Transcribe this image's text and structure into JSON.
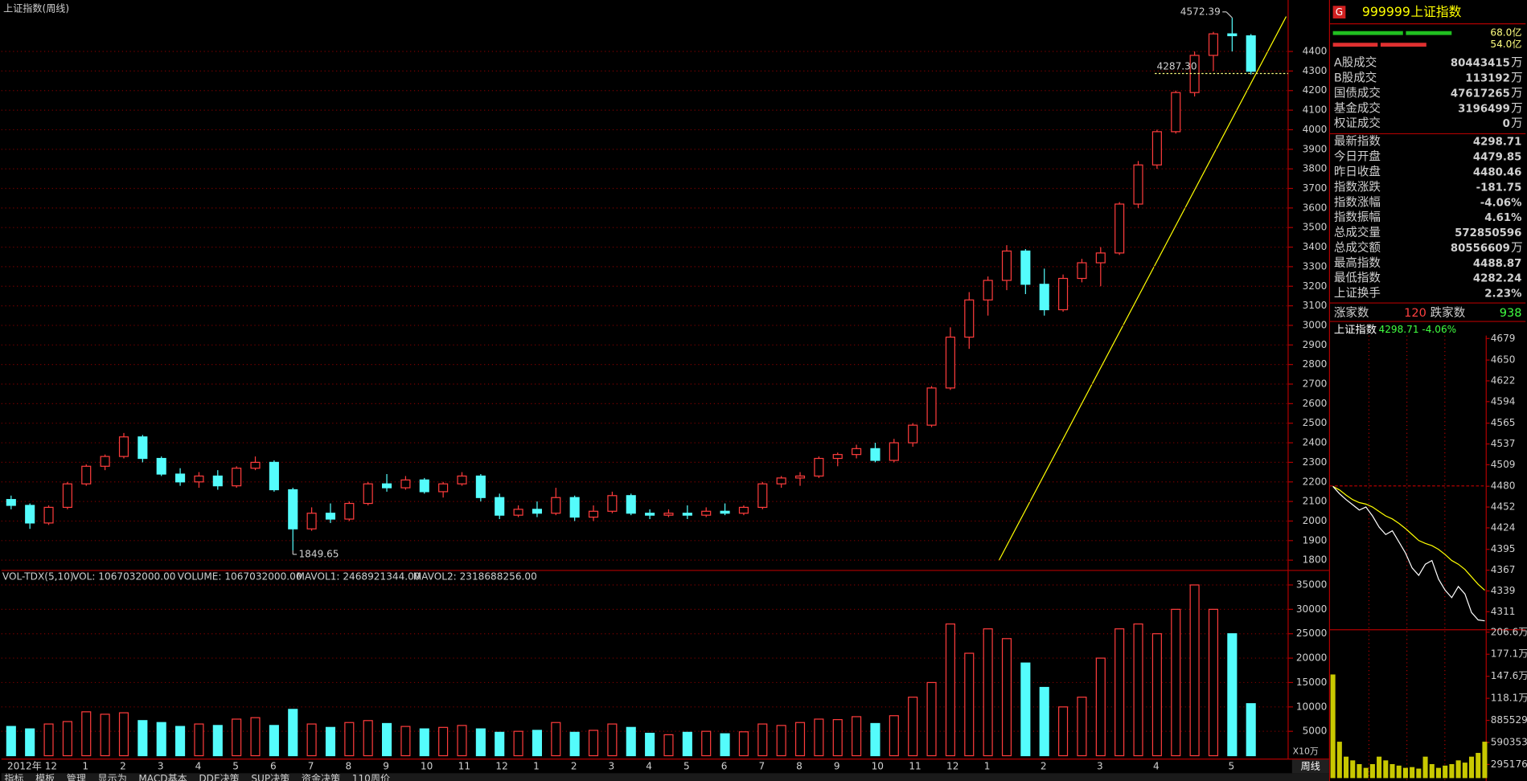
{
  "chart_data": [
    {
      "type": "candlestick",
      "title": "上证指数(周线)",
      "categories": [
        "2012年",
        null,
        "12",
        null,
        "1",
        null,
        "2",
        null,
        "3",
        null,
        "4",
        null,
        "5",
        null,
        "6",
        null,
        "7",
        null,
        "8",
        null,
        "9",
        null,
        "10",
        null,
        "11",
        null,
        "12",
        null,
        "1",
        null,
        "2",
        null,
        "3",
        null,
        "4",
        null,
        "5",
        null,
        "6",
        null,
        "7",
        null,
        "8",
        null,
        "9",
        null,
        "10",
        null,
        "11",
        null,
        "12",
        null,
        "1",
        null,
        null,
        "2",
        null,
        null,
        "3",
        null,
        null,
        "4",
        null,
        null,
        null,
        "5",
        null
      ],
      "ohlc": [
        [
          2110,
          2130,
          2060,
          2080
        ],
        [
          2080,
          2090,
          1960,
          1990
        ],
        [
          1990,
          2080,
          1980,
          2070
        ],
        [
          2070,
          2200,
          2060,
          2190
        ],
        [
          2190,
          2290,
          2180,
          2280
        ],
        [
          2280,
          2340,
          2260,
          2330
        ],
        [
          2330,
          2450,
          2320,
          2430
        ],
        [
          2430,
          2440,
          2300,
          2320
        ],
        [
          2320,
          2330,
          2230,
          2240
        ],
        [
          2240,
          2270,
          2180,
          2200
        ],
        [
          2200,
          2250,
          2170,
          2230
        ],
        [
          2230,
          2260,
          2160,
          2180
        ],
        [
          2180,
          2280,
          2170,
          2270
        ],
        [
          2270,
          2330,
          2260,
          2300
        ],
        [
          2300,
          2310,
          2150,
          2160
        ],
        [
          2160,
          2170,
          1849.65,
          1960
        ],
        [
          1960,
          2070,
          1950,
          2040
        ],
        [
          2040,
          2090,
          1990,
          2010
        ],
        [
          2010,
          2100,
          2000,
          2090
        ],
        [
          2090,
          2200,
          2080,
          2190
        ],
        [
          2190,
          2240,
          2150,
          2170
        ],
        [
          2170,
          2230,
          2160,
          2210
        ],
        [
          2210,
          2220,
          2140,
          2150
        ],
        [
          2150,
          2200,
          2120,
          2190
        ],
        [
          2190,
          2250,
          2180,
          2230
        ],
        [
          2230,
          2240,
          2100,
          2120
        ],
        [
          2120,
          2140,
          2010,
          2030
        ],
        [
          2030,
          2080,
          2020,
          2060
        ],
        [
          2060,
          2100,
          2020,
          2040
        ],
        [
          2040,
          2170,
          2030,
          2120
        ],
        [
          2120,
          2130,
          2000,
          2020
        ],
        [
          2020,
          2080,
          2000,
          2050
        ],
        [
          2050,
          2150,
          2040,
          2130
        ],
        [
          2130,
          2140,
          2030,
          2040
        ],
        [
          2040,
          2060,
          2010,
          2030
        ],
        [
          2030,
          2060,
          2020,
          2040
        ],
        [
          2040,
          2080,
          2010,
          2030
        ],
        [
          2030,
          2070,
          2020,
          2050
        ],
        [
          2050,
          2090,
          2030,
          2040
        ],
        [
          2040,
          2080,
          2030,
          2070
        ],
        [
          2070,
          2200,
          2060,
          2190
        ],
        [
          2190,
          2230,
          2170,
          2220
        ],
        [
          2220,
          2250,
          2180,
          2230
        ],
        [
          2230,
          2330,
          2220,
          2320
        ],
        [
          2320,
          2350,
          2280,
          2340
        ],
        [
          2340,
          2390,
          2320,
          2370
        ],
        [
          2370,
          2400,
          2300,
          2310
        ],
        [
          2310,
          2420,
          2300,
          2400
        ],
        [
          2400,
          2500,
          2380,
          2490
        ],
        [
          2490,
          2690,
          2480,
          2680
        ],
        [
          2680,
          2990,
          2670,
          2940
        ],
        [
          2940,
          3170,
          2880,
          3130
        ],
        [
          3130,
          3250,
          3050,
          3230
        ],
        [
          3230,
          3410,
          3180,
          3380
        ],
        [
          3380,
          3390,
          3160,
          3210
        ],
        [
          3210,
          3290,
          3050,
          3080
        ],
        [
          3080,
          3260,
          3070,
          3240
        ],
        [
          3240,
          3340,
          3220,
          3320
        ],
        [
          3320,
          3400,
          3200,
          3370
        ],
        [
          3370,
          3630,
          3360,
          3620
        ],
        [
          3620,
          3840,
          3600,
          3820
        ],
        [
          3820,
          4000,
          3800,
          3990
        ],
        [
          3990,
          4200,
          3980,
          4190
        ],
        [
          4190,
          4400,
          4170,
          4380
        ],
        [
          4380,
          4500,
          4300,
          4490
        ],
        [
          4490,
          4572.39,
          4400,
          4480.46
        ],
        [
          4479.85,
          4488.87,
          4282.24,
          4298.71
        ]
      ],
      "up_color": "#ff3c3c",
      "down_color": "#54fcfc",
      "ylim": [
        1755,
        4663
      ],
      "yticks": [
        1800,
        1900,
        2000,
        2100,
        2200,
        2300,
        2400,
        2500,
        2600,
        2700,
        2800,
        2900,
        3000,
        3100,
        3200,
        3300,
        3400,
        3500,
        3600,
        3700,
        3800,
        3900,
        4000,
        4100,
        4200,
        4300,
        4400
      ],
      "annotations": [
        4572.39,
        1849.65
      ],
      "hline": {
        "value": 4287.3,
        "label": "4287.30"
      }
    },
    {
      "type": "bar",
      "title": "VOL-TDX(5,10)",
      "legend": [
        "VOL: 1067032000.00",
        "VOLUME: 1067032000.00",
        "MAVOL1: 2468921344.00",
        "MAVOL2: 2318688256.00"
      ],
      "legend_colors": [
        "#e0e0e0",
        "#ffff00",
        "#ffff00",
        "#ff00ff"
      ],
      "unit": "X10万",
      "values": [
        6000,
        5500,
        6500,
        7000,
        9000,
        8500,
        8800,
        7200,
        6800,
        6000,
        6500,
        6200,
        7500,
        7800,
        6200,
        9500,
        6500,
        5800,
        6800,
        7200,
        6600,
        6000,
        5500,
        5800,
        6200,
        5500,
        4800,
        5000,
        5200,
        6800,
        4800,
        5200,
        6500,
        5800,
        4600,
        4300,
        4800,
        5000,
        4500,
        4900,
        6500,
        6200,
        6800,
        7500,
        7400,
        8000,
        6600,
        8200,
        12000,
        15000,
        27000,
        21000,
        26000,
        24000,
        19000,
        14000,
        10000,
        12000,
        20000,
        26000,
        27000,
        25000,
        30000,
        35000,
        30000,
        25000,
        10670.32
      ],
      "ylim": [
        0,
        37276
      ],
      "yticks": [
        5000,
        10000,
        15000,
        20000,
        25000,
        30000,
        35000
      ]
    },
    {
      "type": "line",
      "title": "上证指数",
      "subtitle": "4298.71 -4.06%",
      "series": [
        {
          "name": "price",
          "color": "#ffffff",
          "values": [
            4479.85,
            4470,
            4462,
            4455,
            4448,
            4452,
            4440,
            4425,
            4415,
            4420,
            4405,
            4390,
            4370,
            4360,
            4375,
            4380,
            4355,
            4340,
            4330,
            4345,
            4335,
            4310,
            4300,
            4298.71
          ]
        },
        {
          "name": "average",
          "color": "#ffff00",
          "values": [
            4479.85,
            4475,
            4468,
            4462,
            4458,
            4456,
            4452,
            4446,
            4440,
            4436,
            4430,
            4423,
            4415,
            4407,
            4403,
            4400,
            4395,
            4388,
            4380,
            4375,
            4368,
            4358,
            4348,
            4340
          ]
        }
      ],
      "ref_line": 4480.46,
      "ylim": [
        4290,
        4683
      ],
      "yticks": [
        4679,
        4650,
        4622,
        4594,
        4565,
        4537,
        4509,
        4480,
        4452,
        4424,
        4395,
        4367,
        4339,
        4311
      ],
      "ytick_colors": [
        "#ff4040",
        "#ff4040",
        "#ff4040",
        "#ff4040",
        "#ff4040",
        "#ff4040",
        "#ff4040",
        "#e0e0e0",
        "#40ff40",
        "#40ff40",
        "#40ff40",
        "#40ff40",
        "#40ff40",
        "#40ff40"
      ],
      "volume": [
        1500000,
        600000,
        400000,
        350000,
        300000,
        250000,
        300000,
        400000,
        350000,
        300000,
        280000,
        250000,
        260000,
        240000,
        400000,
        300000,
        250000,
        280000,
        300000,
        350000,
        320000,
        400000,
        450000,
        600000
      ],
      "volume_color": "#c8c800",
      "vol_ylim": [
        112861,
        2105299
      ],
      "vol_yticks": [
        {
          "value": 2066232,
          "label": "206.6万"
        },
        {
          "value": 1771056,
          "label": "177.1万"
        },
        {
          "value": 1475880,
          "label": "147.6万"
        },
        {
          "value": 1180704,
          "label": "118.1万"
        },
        885529,
        590353,
        295176
      ]
    }
  ],
  "quote": {
    "badge": "G",
    "code": "999999",
    "name": "上证指数",
    "bar_labels": [
      "68.0亿",
      "54.0亿"
    ],
    "rows": [
      {
        "label": "A股成交",
        "value": 80443415,
        "unit": "万",
        "color": "#ffff00"
      },
      {
        "label": "B股成交",
        "value": 113192,
        "unit": "万",
        "color": "#ffff00"
      },
      {
        "label": "国债成交",
        "value": 47617265,
        "unit": "万",
        "color": "#ffff00"
      },
      {
        "label": "基金成交",
        "value": 3196499,
        "unit": "万",
        "color": "#ffff00"
      },
      {
        "label": "权证成交",
        "value": 0,
        "unit": "万",
        "color": "#ffff00"
      }
    ],
    "rows2": [
      {
        "label": "最新指数",
        "value": 4298.71,
        "color": "#40ff40"
      },
      {
        "label": "今日开盘",
        "value": 4479.85,
        "color": "#40ff40"
      },
      {
        "label": "昨日收盘",
        "value": 4480.46,
        "color": "#ffffff"
      },
      {
        "label": "指数涨跌",
        "value": -181.75,
        "color": "#40ff40"
      },
      {
        "label": "指数涨幅",
        "value": "-4.06%",
        "color": "#40ff40"
      },
      {
        "label": "指数振幅",
        "value": "4.61%",
        "color": "#ffffff"
      },
      {
        "label": "总成交量",
        "value": 572850596,
        "color": "#ffff00"
      },
      {
        "label": "总成交额",
        "value": 80556609,
        "unit": "万",
        "color": "#ffff00"
      },
      {
        "label": "最高指数",
        "value": 4488.87,
        "color": "#ff4040"
      },
      {
        "label": "最低指数",
        "value": 4282.24,
        "color": "#40ff40"
      },
      {
        "label": "上证换手",
        "value": "2.23%",
        "color": "#ffffff"
      }
    ],
    "breadth": {
      "up_label": "涨家数",
      "up": 120,
      "down_label": "跌家数",
      "down": 938
    }
  },
  "tabs": [
    "指标",
    "模板",
    "管理",
    "显示为",
    "MACD基本",
    "DDE决策",
    "SUP决策",
    "资金决策",
    "110周价"
  ],
  "period": "周线"
}
